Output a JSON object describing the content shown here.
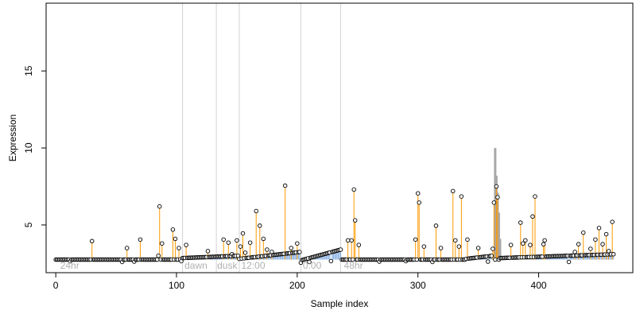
{
  "chart_data": {
    "type": "scatter",
    "title": "",
    "xlabel": "Sample index",
    "ylabel": "Expression",
    "xlim": [
      -8,
      478
    ],
    "ylim": [
      1.9,
      19.4
    ],
    "x_ticks": [
      0,
      100,
      200,
      300,
      400
    ],
    "x_tick_labels": [
      "0",
      "100",
      "200",
      "300",
      "400"
    ],
    "y_ticks": [
      5,
      10,
      15
    ],
    "y_tick_labels": [
      "5",
      "10",
      "15"
    ],
    "grid": false,
    "legend": "none",
    "baseline": 2.75,
    "n_samples": 463,
    "phase_lines": [
      105,
      133,
      152,
      203,
      236
    ],
    "phase_labels": [
      {
        "x": 3,
        "text": "24hr"
      },
      {
        "x": 106,
        "text": "dawn"
      },
      {
        "x": 133,
        "text": "dusk"
      },
      {
        "x": 153,
        "text": "12:00"
      },
      {
        "x": 204,
        "text": "0:00"
      },
      {
        "x": 238,
        "text": "48hr"
      }
    ],
    "colors": {
      "spike": "#ff9900",
      "ramp": "#8db3e2",
      "gray_bar": "#a8a8a8",
      "phase_line": "#d3d3d3",
      "phase_label": "#b0b0b0",
      "point_edge": "#000000"
    },
    "ramps": [
      {
        "x0": 105,
        "x1": 152,
        "y0": 2.85,
        "y1": 3.0
      },
      {
        "x0": 152,
        "x1": 203,
        "y0": 2.8,
        "y1": 3.25
      },
      {
        "x0": 203,
        "x1": 236,
        "y0": 2.7,
        "y1": 3.4
      },
      {
        "x0": 340,
        "x1": 362,
        "y0": 2.8,
        "y1": 3.0
      },
      {
        "x0": 368,
        "x1": 463,
        "y0": 2.85,
        "y1": 3.1
      }
    ],
    "gray_bars": [
      {
        "x": 364,
        "y": 10.0
      },
      {
        "x": 365,
        "y": 8.2
      },
      {
        "x": 366,
        "y": 7.1
      },
      {
        "x": 367,
        "y": 5.8
      },
      {
        "x": 368,
        "y": 4.1
      }
    ],
    "spikes": [
      {
        "x": 30,
        "y": 3.95
      },
      {
        "x": 59,
        "y": 3.5
      },
      {
        "x": 70,
        "y": 4.05
      },
      {
        "x": 85,
        "y": 3.0
      },
      {
        "x": 86,
        "y": 6.2
      },
      {
        "x": 88,
        "y": 3.8
      },
      {
        "x": 97,
        "y": 4.7
      },
      {
        "x": 99,
        "y": 4.1
      },
      {
        "x": 102,
        "y": 3.5
      },
      {
        "x": 108,
        "y": 3.7
      },
      {
        "x": 126,
        "y": 3.3
      },
      {
        "x": 139,
        "y": 4.05
      },
      {
        "x": 143,
        "y": 3.85
      },
      {
        "x": 146,
        "y": 3.1
      },
      {
        "x": 150,
        "y": 4.0
      },
      {
        "x": 153,
        "y": 3.6
      },
      {
        "x": 155,
        "y": 4.45
      },
      {
        "x": 157,
        "y": 3.2
      },
      {
        "x": 161,
        "y": 3.85
      },
      {
        "x": 166,
        "y": 5.9
      },
      {
        "x": 169,
        "y": 4.95
      },
      {
        "x": 172,
        "y": 4.1
      },
      {
        "x": 175,
        "y": 3.4
      },
      {
        "x": 179,
        "y": 3.25
      },
      {
        "x": 190,
        "y": 7.55
      },
      {
        "x": 195,
        "y": 3.5
      },
      {
        "x": 200,
        "y": 3.8
      },
      {
        "x": 242,
        "y": 4.0
      },
      {
        "x": 245,
        "y": 4.0
      },
      {
        "x": 247,
        "y": 7.3
      },
      {
        "x": 248,
        "y": 5.3
      },
      {
        "x": 251,
        "y": 3.7
      },
      {
        "x": 298,
        "y": 4.05
      },
      {
        "x": 300,
        "y": 7.05
      },
      {
        "x": 301,
        "y": 6.45
      },
      {
        "x": 305,
        "y": 3.6
      },
      {
        "x": 315,
        "y": 4.95
      },
      {
        "x": 319,
        "y": 3.5
      },
      {
        "x": 329,
        "y": 7.2
      },
      {
        "x": 331,
        "y": 4.0
      },
      {
        "x": 334,
        "y": 3.6
      },
      {
        "x": 336,
        "y": 6.85
      },
      {
        "x": 341,
        "y": 4.05
      },
      {
        "x": 350,
        "y": 3.5
      },
      {
        "x": 362,
        "y": 3.45
      },
      {
        "x": 363,
        "y": 6.45
      },
      {
        "x": 365,
        "y": 7.5
      },
      {
        "x": 366,
        "y": 6.8
      },
      {
        "x": 377,
        "y": 3.7
      },
      {
        "x": 385,
        "y": 5.15
      },
      {
        "x": 387,
        "y": 3.8
      },
      {
        "x": 389,
        "y": 4.0
      },
      {
        "x": 393,
        "y": 3.7
      },
      {
        "x": 395,
        "y": 5.55
      },
      {
        "x": 397,
        "y": 6.85
      },
      {
        "x": 404,
        "y": 3.75
      },
      {
        "x": 405,
        "y": 4.0
      },
      {
        "x": 430,
        "y": 3.25
      },
      {
        "x": 433,
        "y": 3.75
      },
      {
        "x": 437,
        "y": 4.5
      },
      {
        "x": 443,
        "y": 3.45
      },
      {
        "x": 447,
        "y": 4.05
      },
      {
        "x": 450,
        "y": 4.8
      },
      {
        "x": 453,
        "y": 3.75
      },
      {
        "x": 456,
        "y": 4.4
      },
      {
        "x": 458,
        "y": 3.3
      },
      {
        "x": 461,
        "y": 5.2
      }
    ],
    "low_dips": [
      {
        "x": 12,
        "y": 2.65
      },
      {
        "x": 55,
        "y": 2.6
      },
      {
        "x": 65,
        "y": 2.62
      },
      {
        "x": 104,
        "y": 2.65
      },
      {
        "x": 203,
        "y": 2.55
      },
      {
        "x": 210,
        "y": 2.6
      },
      {
        "x": 228,
        "y": 2.65
      },
      {
        "x": 268,
        "y": 2.62
      },
      {
        "x": 290,
        "y": 2.65
      },
      {
        "x": 312,
        "y": 2.6
      },
      {
        "x": 358,
        "y": 2.62
      },
      {
        "x": 425,
        "y": 2.6
      }
    ]
  }
}
